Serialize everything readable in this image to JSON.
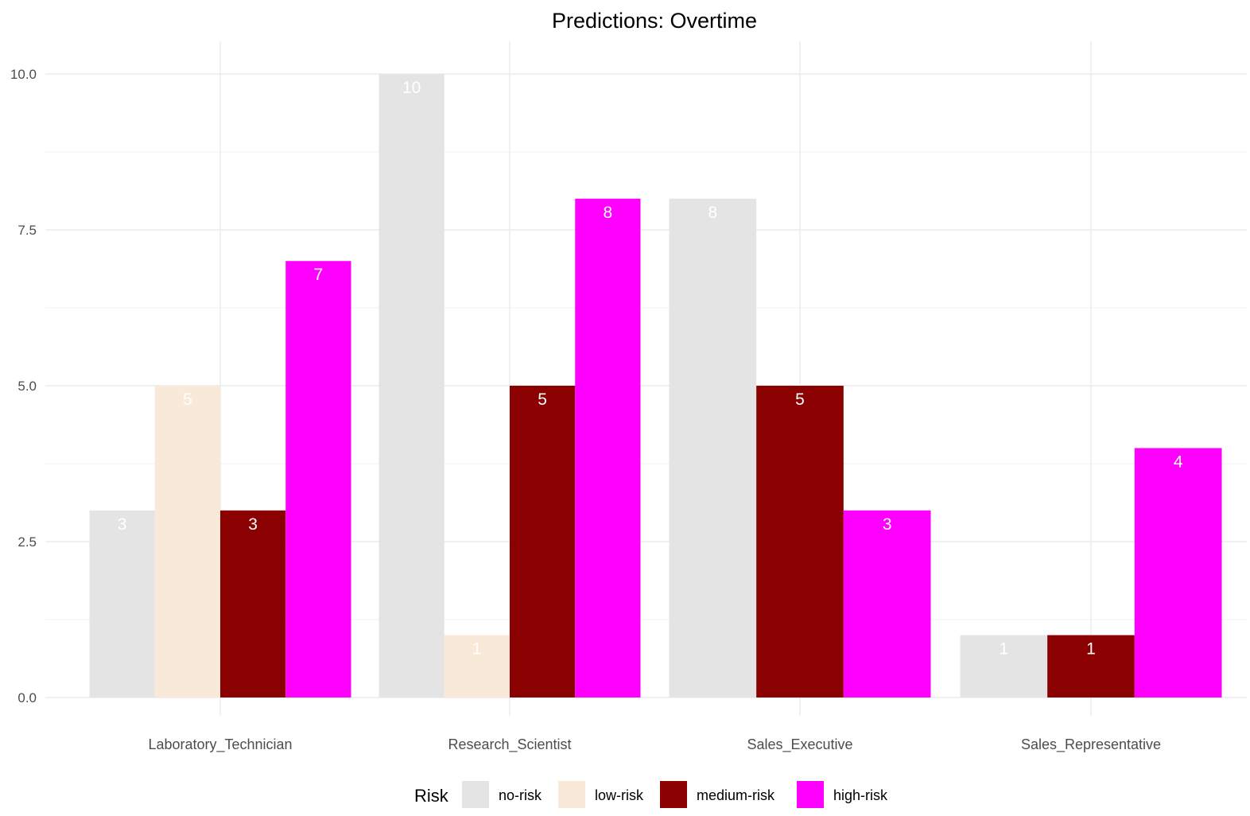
{
  "chart_data": {
    "type": "bar",
    "title": "Predictions: Overtime",
    "xlabel": "",
    "ylabel": "",
    "categories": [
      "Laboratory_Technician",
      "Research_Scientist",
      "Sales_Executive",
      "Sales_Representative"
    ],
    "series": [
      {
        "name": "no-risk",
        "color": "#e4e4e4",
        "values": [
          3,
          10,
          8,
          1
        ]
      },
      {
        "name": "low-risk",
        "color": "#f9e9d8",
        "values": [
          5,
          1,
          null,
          null
        ]
      },
      {
        "name": "medium-risk",
        "color": "#8b0000",
        "values": [
          3,
          5,
          5,
          1
        ]
      },
      {
        "name": "high-risk",
        "color": "#ff00ff",
        "values": [
          7,
          8,
          3,
          4
        ]
      }
    ],
    "ylim": [
      0,
      10
    ],
    "yticks": [
      "0.0",
      "2.5",
      "5.0",
      "7.5",
      "10.0"
    ],
    "grid": true,
    "legend": {
      "title": "Risk",
      "position": "bottom"
    }
  }
}
